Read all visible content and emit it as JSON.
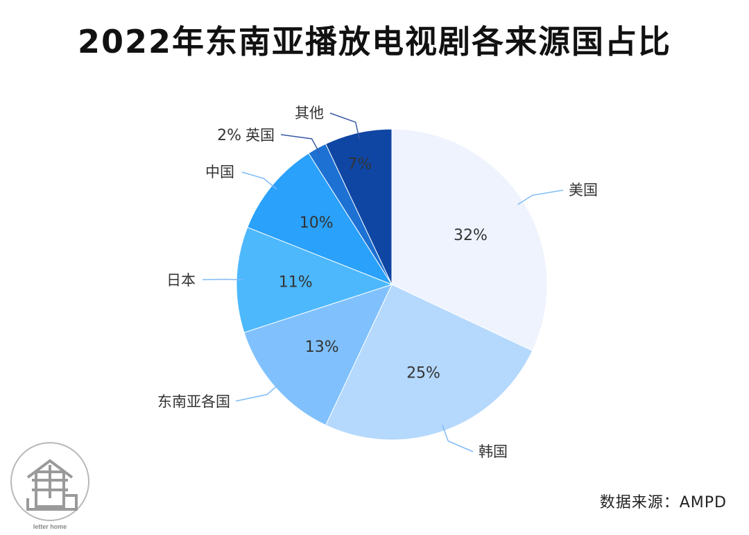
{
  "chart_data": {
    "type": "pie",
    "title": "2022年东南亚播放电视剧各来源国占比",
    "slices": [
      {
        "label": "美国",
        "value": 32,
        "value_label": "32%",
        "color": "#eef3fd",
        "text_color": "#333333"
      },
      {
        "label": "韩国",
        "value": 25,
        "value_label": "25%",
        "color": "#b5d8fd",
        "text_color": "#333333"
      },
      {
        "label": "东南亚各国",
        "value": 13,
        "value_label": "13%",
        "color": "#80c1fd",
        "text_color": "#333333"
      },
      {
        "label": "日本",
        "value": 11,
        "value_label": "11%",
        "color": "#4db8fc",
        "text_color": "#333333"
      },
      {
        "label": "中国",
        "value": 10,
        "value_label": "10%",
        "color": "#2aa1fb",
        "text_color": "#333333"
      },
      {
        "label": "英国",
        "value": 2,
        "value_label": "2%",
        "color": "#1d71d3",
        "text_color": "#333333"
      },
      {
        "label": "其他",
        "value": 7,
        "value_label": "7%",
        "color": "#0f46a3",
        "text_color": "#333333"
      }
    ],
    "start_angle": "12 o'clock",
    "direction": "clockwise",
    "legend": "none",
    "leader_color": "#7fbbf5"
  },
  "source": "数据来源：AMPD",
  "logo": {
    "caption": "letter home",
    "icon": "book-house-logo-icon"
  }
}
